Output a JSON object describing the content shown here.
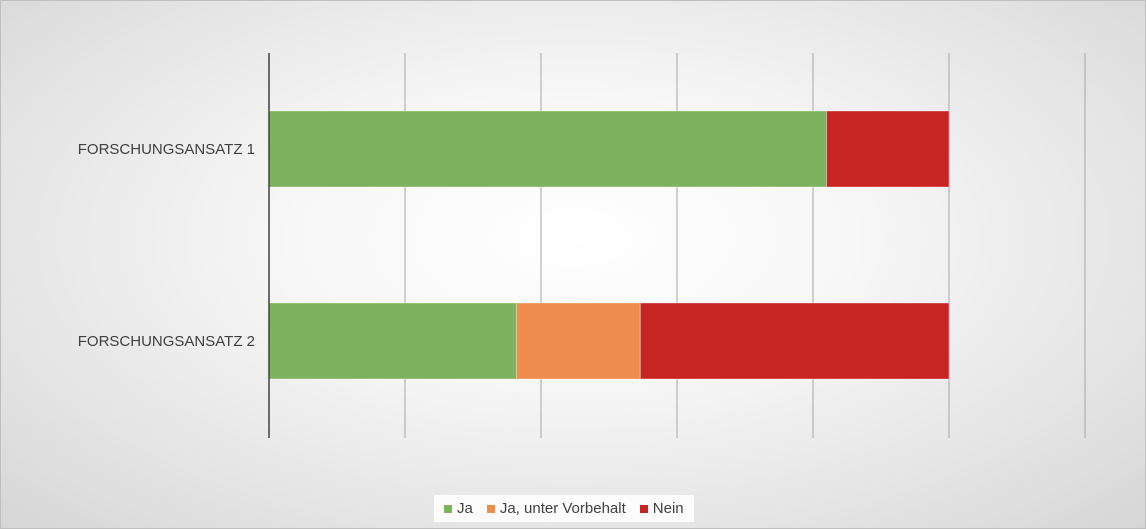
{
  "chart_data": {
    "type": "bar",
    "orientation": "horizontal",
    "stacked": true,
    "title": "",
    "xlabel": "",
    "ylabel": "",
    "categories": [
      "FORSCHUNGSANSATZ 1",
      "FORSCHUNGSANSATZ 2"
    ],
    "series": [
      {
        "name": "Ja",
        "color": "#7db35d",
        "values": [
          41,
          18.2
        ]
      },
      {
        "name": "Ja, unter Vorbehalt",
        "color": "#ed8c4c",
        "values": [
          0,
          9.1
        ]
      },
      {
        "name": "Nein",
        "color": "#c62523",
        "values": [
          9,
          22.7
        ]
      }
    ],
    "xlim": [
      0,
      60
    ],
    "grid_step": 10,
    "tick_labels_shown": false,
    "grid": true,
    "legend": "bottom"
  }
}
